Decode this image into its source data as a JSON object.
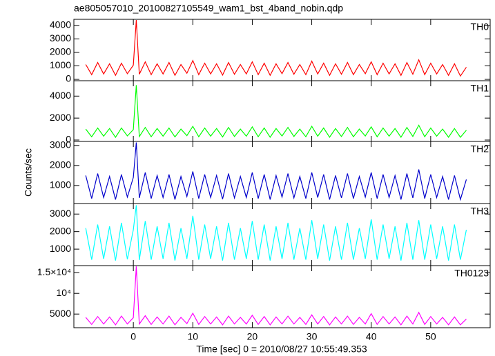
{
  "title": "ae805057010_20100827105549_wam1_bst_4band_nobin.qdp",
  "xlabel": "Time [sec] 0 = 2010/08/27 10:55:49.353",
  "ylabel": "Counts/sec",
  "chart_data": [
    {
      "type": "line",
      "label": "TH0",
      "xlim": [
        -10,
        60
      ],
      "xticks": [
        0,
        10,
        20,
        30,
        40,
        50
      ],
      "ylim": [
        -100,
        4450
      ],
      "yticks": [
        0,
        1000,
        2000,
        3000,
        4000
      ],
      "x": [
        -8,
        -7,
        -6,
        -5,
        -4,
        -3,
        -2,
        -1,
        0,
        0.5,
        1,
        2,
        3,
        4,
        5,
        6,
        7,
        8,
        9,
        10,
        11,
        12,
        13,
        14,
        15,
        16,
        17,
        18,
        19,
        20,
        21,
        22,
        23,
        24,
        25,
        26,
        27,
        28,
        29,
        30,
        31,
        32,
        33,
        34,
        35,
        36,
        37,
        38,
        39,
        40,
        41,
        42,
        43,
        44,
        45,
        46,
        47,
        48,
        49,
        50,
        51,
        52,
        53,
        54,
        55,
        56
      ],
      "series": [
        {
          "color": "#ff0000",
          "values": [
            1100,
            350,
            1250,
            400,
            1150,
            300,
            1200,
            420,
            1050,
            4400,
            380,
            1300,
            350,
            1150,
            400,
            1250,
            300,
            1100,
            450,
            1400,
            350,
            1200,
            400,
            1150,
            320,
            1250,
            380,
            1100,
            400,
            1300,
            350,
            1200,
            300,
            1150,
            420,
            1250,
            380,
            1100,
            350,
            1350,
            400,
            1200,
            300,
            1150,
            380,
            1250,
            350,
            1100,
            420,
            1300,
            350,
            1200,
            400,
            1150,
            300,
            1250,
            380,
            1450,
            350,
            1200,
            400,
            1100,
            300,
            1150,
            250,
            900
          ]
        }
      ]
    },
    {
      "type": "line",
      "label": "TH1",
      "xlim": [
        -10,
        60
      ],
      "xticks": [
        0,
        10,
        20,
        30,
        40,
        50
      ],
      "ylim": [
        -125,
        5400
      ],
      "yticks": [
        0,
        2000,
        4000
      ],
      "x": [
        -8,
        -7,
        -6,
        -5,
        -4,
        -3,
        -2,
        -1,
        0,
        0.5,
        1,
        2,
        3,
        4,
        5,
        6,
        7,
        8,
        9,
        10,
        11,
        12,
        13,
        14,
        15,
        16,
        17,
        18,
        19,
        20,
        21,
        22,
        23,
        24,
        25,
        26,
        27,
        28,
        29,
        30,
        31,
        32,
        33,
        34,
        35,
        36,
        37,
        38,
        39,
        40,
        41,
        42,
        43,
        44,
        45,
        46,
        47,
        48,
        49,
        50,
        51,
        52,
        53,
        54,
        55,
        56
      ],
      "series": [
        {
          "color": "#00ff00",
          "values": [
            1000,
            300,
            1100,
            350,
            1050,
            250,
            1100,
            380,
            950,
            5000,
            320,
            1150,
            300,
            1050,
            350,
            1100,
            280,
            1000,
            400,
            1250,
            300,
            1100,
            350,
            1050,
            280,
            1150,
            330,
            1000,
            350,
            1200,
            300,
            1100,
            260,
            1050,
            370,
            1150,
            330,
            1000,
            300,
            1250,
            350,
            1100,
            260,
            1050,
            330,
            1150,
            300,
            1000,
            370,
            1200,
            300,
            1100,
            350,
            1050,
            260,
            1150,
            330,
            1350,
            300,
            1100,
            350,
            1000,
            260,
            1050,
            250,
            900
          ]
        }
      ]
    },
    {
      "type": "line",
      "label": "TH2",
      "xlim": [
        -10,
        60
      ],
      "xticks": [
        0,
        10,
        20,
        30,
        40,
        50
      ],
      "ylim": [
        100,
        3200
      ],
      "yticks": [
        1000,
        2000,
        3000
      ],
      "x": [
        -8,
        -7,
        -6,
        -5,
        -4,
        -3,
        -2,
        -1,
        0,
        0.5,
        1,
        2,
        3,
        4,
        5,
        6,
        7,
        8,
        9,
        10,
        11,
        12,
        13,
        14,
        15,
        16,
        17,
        18,
        19,
        20,
        21,
        22,
        23,
        24,
        25,
        26,
        27,
        28,
        29,
        30,
        31,
        32,
        33,
        34,
        35,
        36,
        37,
        38,
        39,
        40,
        41,
        42,
        43,
        44,
        45,
        46,
        47,
        48,
        49,
        50,
        51,
        52,
        53,
        54,
        55,
        56
      ],
      "series": [
        {
          "color": "#0000cc",
          "values": [
            1500,
            350,
            1600,
            400,
            1450,
            300,
            1550,
            420,
            1400,
            3150,
            380,
            1650,
            350,
            1500,
            400,
            1550,
            300,
            1450,
            450,
            1700,
            350,
            1550,
            400,
            1500,
            320,
            1600,
            380,
            1450,
            400,
            1650,
            350,
            1550,
            300,
            1500,
            420,
            1600,
            380,
            1450,
            350,
            1650,
            400,
            1550,
            300,
            1500,
            380,
            1600,
            350,
            1450,
            420,
            1650,
            350,
            1550,
            400,
            1500,
            300,
            1600,
            380,
            1800,
            350,
            1550,
            400,
            1450,
            300,
            1500,
            300,
            1300
          ]
        }
      ]
    },
    {
      "type": "line",
      "label": "TH3",
      "xlim": [
        -10,
        60
      ],
      "xticks": [
        0,
        10,
        20,
        30,
        40,
        50
      ],
      "ylim": [
        60,
        3600
      ],
      "yticks": [
        1000,
        2000,
        3000
      ],
      "x": [
        -8,
        -7,
        -6,
        -5,
        -4,
        -3,
        -2,
        -1,
        0,
        0.5,
        1,
        2,
        3,
        4,
        5,
        6,
        7,
        8,
        9,
        10,
        11,
        12,
        13,
        14,
        15,
        16,
        17,
        18,
        19,
        20,
        21,
        22,
        23,
        24,
        25,
        26,
        27,
        28,
        29,
        30,
        31,
        32,
        33,
        34,
        35,
        36,
        37,
        38,
        39,
        40,
        41,
        42,
        43,
        44,
        45,
        46,
        47,
        48,
        49,
        50,
        51,
        52,
        53,
        54,
        55,
        56
      ],
      "series": [
        {
          "color": "#00ffff",
          "values": [
            2200,
            400,
            2400,
            450,
            2300,
            350,
            2500,
            420,
            2100,
            3500,
            380,
            2600,
            400,
            2300,
            450,
            2500,
            350,
            2200,
            450,
            2900,
            400,
            2400,
            450,
            2300,
            350,
            2500,
            400,
            2200,
            450,
            2600,
            400,
            2400,
            350,
            2300,
            450,
            2500,
            400,
            2200,
            400,
            2650,
            450,
            2400,
            350,
            2300,
            400,
            2500,
            400,
            2200,
            450,
            2700,
            400,
            2400,
            450,
            2300,
            350,
            2500,
            400,
            2650,
            400,
            2400,
            450,
            2300,
            350,
            2400,
            400,
            2100
          ]
        }
      ]
    },
    {
      "type": "line",
      "label": "TH0123",
      "xlim": [
        -10,
        60
      ],
      "xticks": [
        0,
        10,
        20,
        30,
        40,
        50
      ],
      "ylim": [
        1700,
        16700
      ],
      "yticks": [
        {
          "value": 15000,
          "label": "1.5×10⁴"
        },
        {
          "value": 10000,
          "label": "10⁴"
        },
        5000
      ],
      "x": [
        -8,
        -7,
        -6,
        -5,
        -4,
        -3,
        -2,
        -1,
        0,
        0.5,
        1,
        2,
        3,
        4,
        5,
        6,
        7,
        8,
        9,
        10,
        11,
        12,
        13,
        14,
        15,
        16,
        17,
        18,
        19,
        20,
        21,
        22,
        23,
        24,
        25,
        26,
        27,
        28,
        29,
        30,
        31,
        32,
        33,
        34,
        35,
        36,
        37,
        38,
        39,
        40,
        41,
        42,
        43,
        44,
        45,
        46,
        47,
        48,
        49,
        50,
        51,
        52,
        53,
        54,
        55,
        56
      ],
      "series": [
        {
          "color": "#ff00ff",
          "values": [
            4200,
            2500,
            4400,
            2600,
            4300,
            2400,
            4500,
            2600,
            4100,
            16500,
            2600,
            4600,
            2500,
            4300,
            2600,
            4500,
            2400,
            4200,
            2700,
            5200,
            2500,
            4400,
            2600,
            4300,
            2400,
            4500,
            2600,
            4200,
            2600,
            4700,
            2500,
            4400,
            2400,
            4300,
            2600,
            4500,
            2600,
            4200,
            2500,
            4800,
            2600,
            4400,
            2400,
            4300,
            2600,
            4500,
            2500,
            4200,
            2600,
            5100,
            2500,
            4400,
            2600,
            4300,
            2400,
            4500,
            2600,
            5400,
            2500,
            4400,
            2600,
            4200,
            2400,
            4300,
            2400,
            3800
          ]
        }
      ]
    }
  ]
}
